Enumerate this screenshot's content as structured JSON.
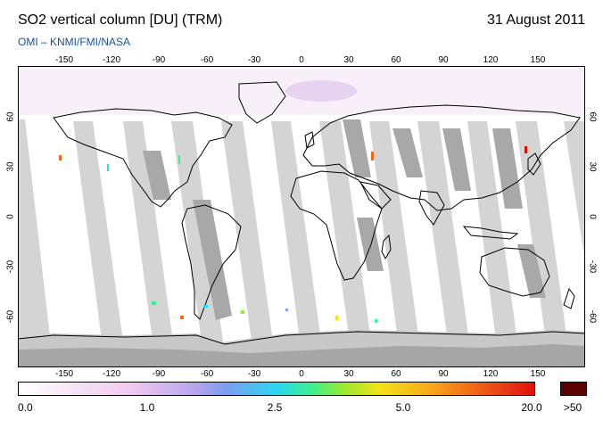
{
  "header": {
    "title": "SO2 vertical column [DU] (TRM)",
    "date": "31 August 2011",
    "subtitle": "OMI  –  KNMI/FMI/NASA"
  },
  "map": {
    "lon_ticks": [
      "-150",
      "-120",
      "-90",
      "-60",
      "-30",
      "0",
      "30",
      "60",
      "90",
      "120",
      "150"
    ],
    "lat_ticks": [
      "60",
      "30",
      "0",
      "-30",
      "-60"
    ],
    "lon_range": [
      -180,
      180
    ],
    "lat_range": [
      -90,
      90
    ],
    "colors": {
      "ocean": "#ffffff",
      "swath_gap": "#d3d3d3",
      "swath_overlap": "#a0a0a0",
      "coast": "#000000",
      "polar_gray": "#c0c0c0"
    }
  },
  "colorbar": {
    "labels": [
      "0.0",
      "1.0",
      "2.5",
      "5.0",
      "20.0"
    ],
    "overflow_label": ">50",
    "overflow_color": "#5a0000"
  }
}
